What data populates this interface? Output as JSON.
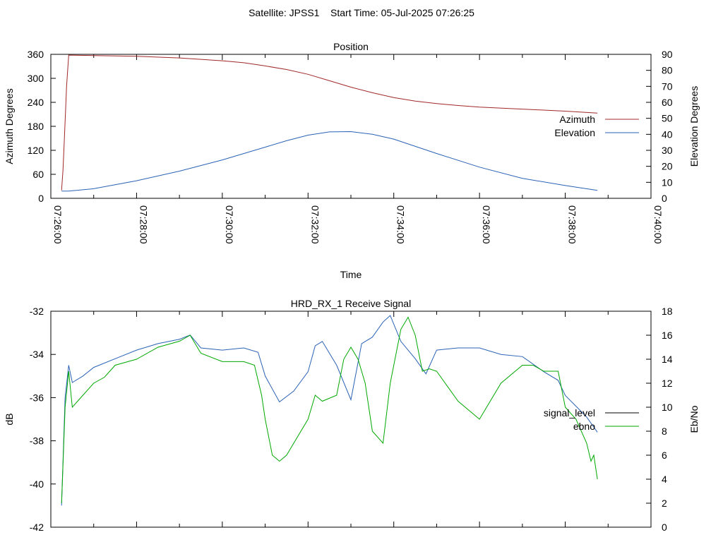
{
  "header": {
    "title": "Satellite: JPSS1    Start Time: 05-Jul-2025 07:26:25"
  },
  "chart_data": [
    {
      "type": "line",
      "title": "Position",
      "xlabel": "Time",
      "ylabel": "Azimuth Degrees",
      "y2label": "Elevation Degrees",
      "xlim": [
        "07:26:00",
        "07:40:00"
      ],
      "ylim": [
        0,
        360
      ],
      "y2lim": [
        0,
        90
      ],
      "x_ticks": [
        "07:26:00",
        "07:28:00",
        "07:30:00",
        "07:32:00",
        "07:34:00",
        "07:36:00",
        "07:38:00",
        "07:40:00"
      ],
      "y_ticks": [
        "0",
        "60",
        "120",
        "180",
        "240",
        "300",
        "360"
      ],
      "y2_ticks": [
        "0",
        "10",
        "20",
        "30",
        "40",
        "50",
        "60",
        "70",
        "80",
        "90"
      ],
      "legend_position": "right",
      "series": [
        {
          "name": "Azimuth",
          "axis": "y",
          "color": "#a02828",
          "x": [
            "07:26:15",
            "07:26:17",
            "07:26:19",
            "07:26:22",
            "07:26:25",
            "07:27:00",
            "07:28:00",
            "07:29:00",
            "07:30:00",
            "07:30:30",
            "07:31:00",
            "07:31:30",
            "07:32:00",
            "07:32:30",
            "07:33:00",
            "07:33:30",
            "07:34:00",
            "07:34:30",
            "07:35:00",
            "07:35:30",
            "07:36:00",
            "07:37:00",
            "07:38:00",
            "07:38:45"
          ],
          "values": [
            20,
            70,
            150,
            280,
            358,
            357,
            355,
            351,
            344,
            339,
            331,
            322,
            310,
            294,
            278,
            264,
            252,
            243,
            237,
            232,
            228,
            223,
            218,
            213
          ]
        },
        {
          "name": "Elevation",
          "axis": "y2",
          "color": "#2a62b5",
          "x": [
            "07:26:15",
            "07:26:25",
            "07:27:00",
            "07:28:00",
            "07:29:00",
            "07:30:00",
            "07:31:00",
            "07:31:30",
            "07:32:00",
            "07:32:30",
            "07:33:00",
            "07:33:30",
            "07:34:00",
            "07:35:00",
            "07:36:00",
            "07:37:00",
            "07:38:00",
            "07:38:45"
          ],
          "values": [
            4.5,
            4.5,
            6,
            11,
            17,
            24,
            32,
            36,
            39.5,
            41.5,
            41.7,
            40,
            37,
            28,
            19.5,
            12.5,
            8,
            5
          ]
        }
      ]
    },
    {
      "type": "line",
      "title": "HRD_RX_1 Receive Signal",
      "ylabel": "dB",
      "y2label": "Eb/No",
      "xlim": [
        "07:26:00",
        "07:40:00"
      ],
      "ylim": [
        -42,
        -32
      ],
      "y2lim": [
        0,
        18
      ],
      "y_ticks": [
        "-42",
        "-40",
        "-38",
        "-36",
        "-34",
        "-32"
      ],
      "y2_ticks": [
        "0",
        "2",
        "4",
        "6",
        "8",
        "10",
        "12",
        "14",
        "16",
        "18"
      ],
      "legend_position": "right",
      "series": [
        {
          "name": "signal_level",
          "axis": "y",
          "color": "#2a62b5",
          "x": [
            "07:26:15",
            "07:26:20",
            "07:26:25",
            "07:26:30",
            "07:26:45",
            "07:27:00",
            "07:27:30",
            "07:28:00",
            "07:28:30",
            "07:29:00",
            "07:29:15",
            "07:29:30",
            "07:30:00",
            "07:30:30",
            "07:30:50",
            "07:31:00",
            "07:31:20",
            "07:31:40",
            "07:32:00",
            "07:32:10",
            "07:32:20",
            "07:32:40",
            "07:33:00",
            "07:33:15",
            "07:33:30",
            "07:33:45",
            "07:33:55",
            "07:34:10",
            "07:34:30",
            "07:34:45",
            "07:35:00",
            "07:35:30",
            "07:36:00",
            "07:36:30",
            "07:37:00",
            "07:37:30",
            "07:37:50",
            "07:38:00",
            "07:38:15",
            "07:38:30",
            "07:38:45"
          ],
          "values": [
            -41,
            -36,
            -34.5,
            -35.3,
            -35,
            -34.6,
            -34.2,
            -33.8,
            -33.5,
            -33.3,
            -33.1,
            -33.7,
            -33.8,
            -33.7,
            -33.9,
            -35,
            -36.2,
            -35.7,
            -34.8,
            -33.6,
            -33.4,
            -34.5,
            -36.1,
            -33.5,
            -33.2,
            -32.5,
            -32.2,
            -33.4,
            -34.2,
            -34.9,
            -33.8,
            -33.7,
            -33.7,
            -34,
            -34.1,
            -34.8,
            -35.2,
            -35.9,
            -36.4,
            -36.9,
            -37.6
          ]
        },
        {
          "name": "ebno",
          "axis": "y2",
          "color": "#00a800",
          "x": [
            "07:26:15",
            "07:26:20",
            "07:26:25",
            "07:26:30",
            "07:26:45",
            "07:27:00",
            "07:27:15",
            "07:27:30",
            "07:28:00",
            "07:28:30",
            "07:29:00",
            "07:29:15",
            "07:29:30",
            "07:30:00",
            "07:30:30",
            "07:30:45",
            "07:30:55",
            "07:31:00",
            "07:31:10",
            "07:31:20",
            "07:31:30",
            "07:31:40",
            "07:32:00",
            "07:32:10",
            "07:32:20",
            "07:32:40",
            "07:32:50",
            "07:33:00",
            "07:33:10",
            "07:33:20",
            "07:33:30",
            "07:33:45",
            "07:33:55",
            "07:34:10",
            "07:34:20",
            "07:34:30",
            "07:34:40",
            "07:34:50",
            "07:35:00",
            "07:35:30",
            "07:36:00",
            "07:36:30",
            "07:37:00",
            "07:37:15",
            "07:37:30",
            "07:37:50",
            "07:38:00",
            "07:38:15",
            "07:38:30",
            "07:38:36",
            "07:38:40",
            "07:38:45"
          ],
          "values": [
            2,
            10,
            13,
            10,
            11,
            12,
            12.5,
            13.5,
            14,
            15,
            15.5,
            16,
            14.5,
            13.8,
            13.8,
            13.5,
            11,
            9,
            6,
            5.5,
            6,
            7,
            9,
            11,
            10.5,
            11,
            14,
            15,
            14,
            12,
            8,
            7,
            12,
            16.5,
            17.5,
            16,
            13,
            13.2,
            13,
            10.5,
            9,
            12,
            13.5,
            13.5,
            13,
            13,
            10,
            9,
            7,
            5.5,
            6,
            4
          ]
        }
      ]
    }
  ]
}
